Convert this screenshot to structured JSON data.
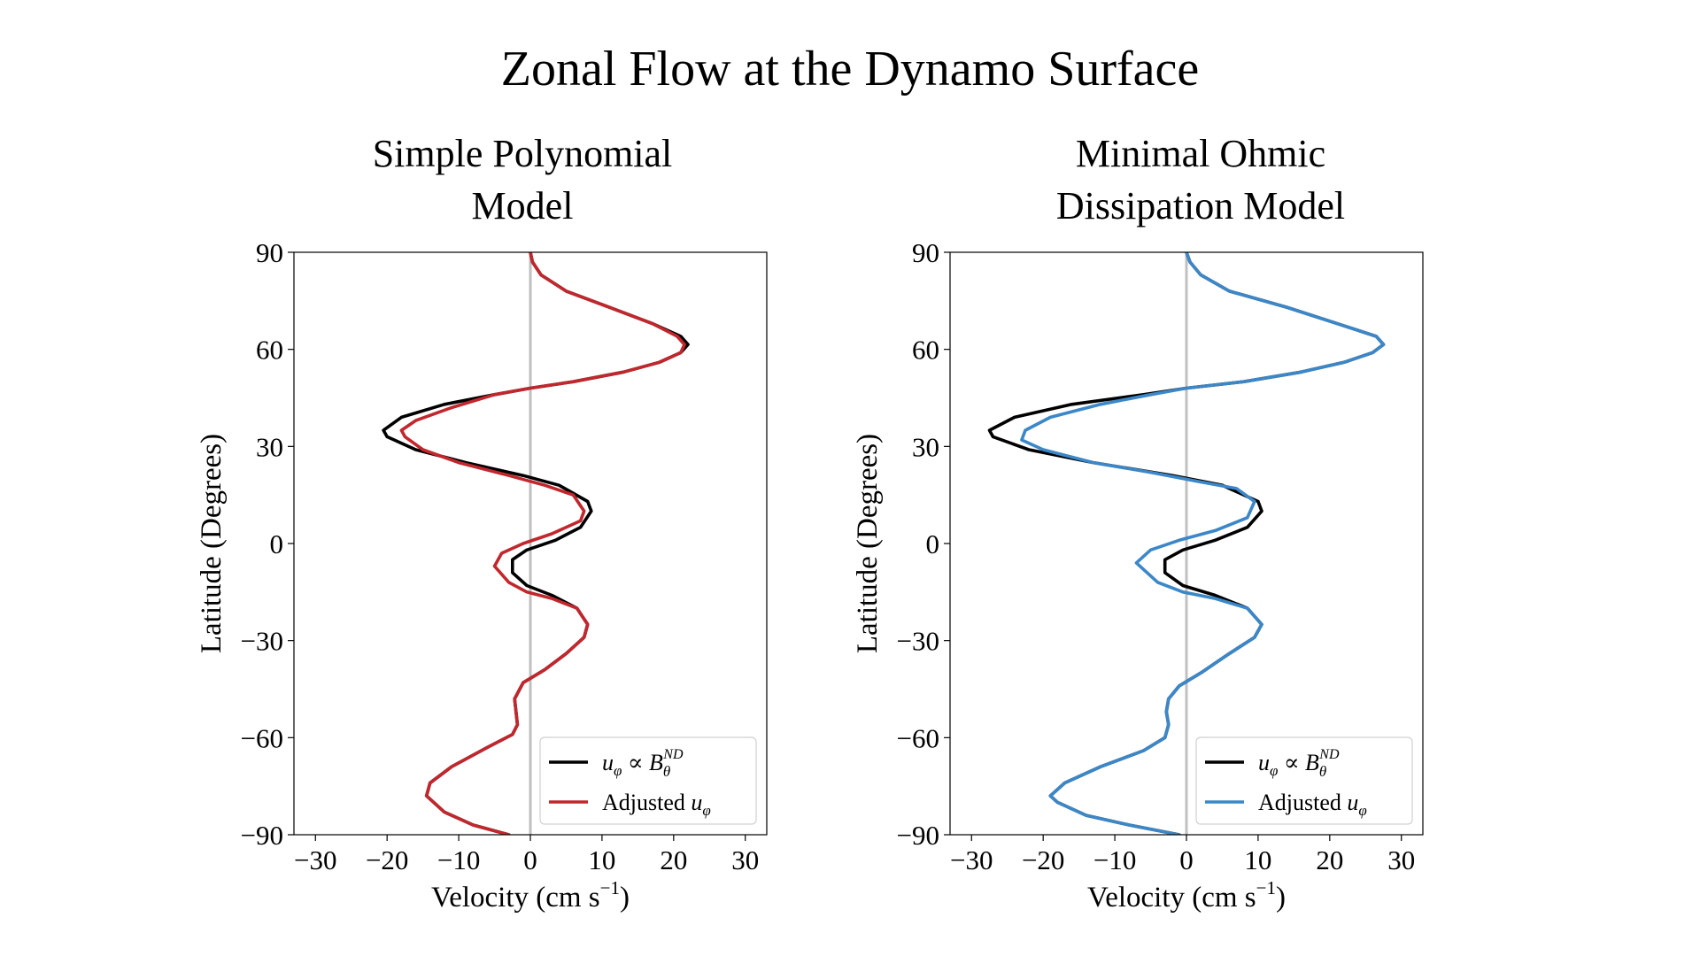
{
  "figure": {
    "title": "Zonal Flow at the Dynamo Surface"
  },
  "chart_data": [
    {
      "type": "line",
      "title_lines": [
        "Simple Polynomial",
        "Model"
      ],
      "xlabel": "Velocity (cm s",
      "xlabel_exp": "−1",
      "xlabel_close": ")",
      "ylabel": "Latitude (Degrees)",
      "xlim": [
        -33,
        33
      ],
      "ylim": [
        -90,
        90
      ],
      "xticks": [
        -30,
        -20,
        -10,
        0,
        10,
        20,
        30
      ],
      "xtick_labels": [
        "−30",
        "−20",
        "−10",
        "0",
        "10",
        "20",
        "30"
      ],
      "yticks": [
        -90,
        -60,
        -30,
        0,
        30,
        60,
        90
      ],
      "ytick_labels": [
        "−90",
        "−60",
        "−30",
        "0",
        "30",
        "60",
        "90"
      ],
      "zero_line_color": "#c0c0c0",
      "grid": false,
      "legend_position": "lower-right",
      "series": [
        {
          "name": "u_φ ∝ B_θ^ND",
          "legend": {
            "u": "u",
            "u_sub": "φ",
            "prop": " ∝ ",
            "b": "B",
            "b_sub": "θ",
            "b_sup": "ND"
          },
          "color": "#000000",
          "points": [
            [
              -3,
              -90
            ],
            [
              -8,
              -87
            ],
            [
              -12,
              -83
            ],
            [
              -14.5,
              -78
            ],
            [
              -14,
              -74
            ],
            [
              -11,
              -69
            ],
            [
              -6,
              -63
            ],
            [
              -2.5,
              -59
            ],
            [
              -1.8,
              -56
            ],
            [
              -2,
              -52
            ],
            [
              -2.2,
              -48
            ],
            [
              -1,
              -43
            ],
            [
              2,
              -39
            ],
            [
              5,
              -34
            ],
            [
              7.5,
              -29
            ],
            [
              8,
              -25
            ],
            [
              6.5,
              -20
            ],
            [
              3,
              -16
            ],
            [
              -0.5,
              -13
            ],
            [
              -2.5,
              -9
            ],
            [
              -2.5,
              -5
            ],
            [
              -0.5,
              -2
            ],
            [
              3.5,
              1
            ],
            [
              7,
              5
            ],
            [
              8.5,
              10
            ],
            [
              8,
              13
            ],
            [
              4,
              18
            ],
            [
              -1,
              21
            ],
            [
              -9,
              25
            ],
            [
              -16,
              29
            ],
            [
              -20,
              33
            ],
            [
              -20.5,
              35
            ],
            [
              -18,
              39
            ],
            [
              -12,
              43
            ],
            [
              -5,
              46
            ],
            [
              0,
              48
            ],
            [
              6,
              50
            ],
            [
              13,
              53
            ],
            [
              18,
              56
            ],
            [
              21,
              59
            ],
            [
              22,
              61.5
            ],
            [
              21,
              64
            ],
            [
              17,
              68
            ],
            [
              11,
              73
            ],
            [
              5,
              78
            ],
            [
              1.5,
              83
            ],
            [
              0.3,
              87
            ],
            [
              0,
              90
            ]
          ]
        },
        {
          "name": "Adjusted u_φ",
          "legend": {
            "text": "Adjusted ",
            "u": "u",
            "u_sub": "φ"
          },
          "color": "#c1272d",
          "points": [
            [
              -3,
              -90
            ],
            [
              -8,
              -87
            ],
            [
              -12,
              -83
            ],
            [
              -14.5,
              -78
            ],
            [
              -14,
              -74
            ],
            [
              -11,
              -69
            ],
            [
              -6,
              -63
            ],
            [
              -2.5,
              -59
            ],
            [
              -1.8,
              -56
            ],
            [
              -2,
              -52
            ],
            [
              -2.2,
              -48
            ],
            [
              -1,
              -43
            ],
            [
              2,
              -39
            ],
            [
              5,
              -34
            ],
            [
              7.5,
              -29
            ],
            [
              8,
              -25
            ],
            [
              6.5,
              -20
            ],
            [
              3,
              -17
            ],
            [
              -0.5,
              -15
            ],
            [
              -3,
              -12
            ],
            [
              -5,
              -7
            ],
            [
              -4,
              -3
            ],
            [
              -1,
              0
            ],
            [
              3,
              3
            ],
            [
              7,
              7
            ],
            [
              7.5,
              10
            ],
            [
              6,
              15
            ],
            [
              2,
              18
            ],
            [
              -3,
              21
            ],
            [
              -10,
              25
            ],
            [
              -15,
              29
            ],
            [
              -17.5,
              33
            ],
            [
              -18,
              35
            ],
            [
              -16,
              38
            ],
            [
              -11,
              42
            ],
            [
              -5,
              46
            ],
            [
              0,
              48
            ],
            [
              6,
              50
            ],
            [
              13,
              53
            ],
            [
              18,
              56
            ],
            [
              21,
              59
            ],
            [
              21.5,
              61.5
            ],
            [
              20.5,
              64
            ],
            [
              17,
              68
            ],
            [
              11,
              73
            ],
            [
              5,
              78
            ],
            [
              1.5,
              83
            ],
            [
              0.3,
              87
            ],
            [
              0,
              90
            ]
          ]
        }
      ]
    },
    {
      "type": "line",
      "title_lines": [
        "Minimal Ohmic",
        "Dissipation Model"
      ],
      "xlabel": "Velocity (cm s",
      "xlabel_exp": "−1",
      "xlabel_close": ")",
      "ylabel": "Latitude (Degrees)",
      "xlim": [
        -33,
        33
      ],
      "ylim": [
        -90,
        90
      ],
      "xticks": [
        -30,
        -20,
        -10,
        0,
        10,
        20,
        30
      ],
      "xtick_labels": [
        "−30",
        "−20",
        "−10",
        "0",
        "10",
        "20",
        "30"
      ],
      "yticks": [
        -90,
        -60,
        -30,
        0,
        30,
        60,
        90
      ],
      "ytick_labels": [
        "−90",
        "−60",
        "−30",
        "0",
        "30",
        "60",
        "90"
      ],
      "zero_line_color": "#c0c0c0",
      "grid": false,
      "legend_position": "lower-right",
      "series": [
        {
          "name": "u_φ ∝ B_θ^ND",
          "legend": {
            "u": "u",
            "u_sub": "φ",
            "prop": " ∝ ",
            "b": "B",
            "b_sub": "θ",
            "b_sup": "ND"
          },
          "color": "#000000",
          "points": [
            [
              -1,
              -90
            ],
            [
              -8,
              -87
            ],
            [
              -14,
              -84
            ],
            [
              -18,
              -80
            ],
            [
              -19,
              -78
            ],
            [
              -17,
              -74
            ],
            [
              -12,
              -69
            ],
            [
              -6,
              -64
            ],
            [
              -3,
              -60
            ],
            [
              -2.5,
              -56
            ],
            [
              -2.8,
              -52
            ],
            [
              -2.5,
              -48
            ],
            [
              -1,
              -44
            ],
            [
              2,
              -40
            ],
            [
              6,
              -34
            ],
            [
              9.5,
              -29
            ],
            [
              10.5,
              -25
            ],
            [
              8.5,
              -20
            ],
            [
              4,
              -16
            ],
            [
              -0.5,
              -13
            ],
            [
              -3,
              -9
            ],
            [
              -3,
              -5
            ],
            [
              -0.5,
              -2
            ],
            [
              4,
              1
            ],
            [
              8.5,
              5
            ],
            [
              10.5,
              10
            ],
            [
              10,
              13
            ],
            [
              5,
              18
            ],
            [
              -2,
              21
            ],
            [
              -13,
              25
            ],
            [
              -22,
              29
            ],
            [
              -27,
              33
            ],
            [
              -27.5,
              35
            ],
            [
              -24,
              39
            ],
            [
              -16,
              43
            ],
            [
              -6,
              46
            ],
            [
              0,
              48
            ],
            [
              8,
              50
            ],
            [
              16,
              53
            ],
            [
              22,
              56
            ],
            [
              26,
              59
            ],
            [
              27.5,
              61.5
            ],
            [
              26.5,
              64
            ],
            [
              21,
              68
            ],
            [
              14,
              73
            ],
            [
              6,
              78
            ],
            [
              2,
              83
            ],
            [
              0.5,
              87
            ],
            [
              0,
              90
            ]
          ]
        },
        {
          "name": "Adjusted u_φ",
          "legend": {
            "text": "Adjusted ",
            "u": "u",
            "u_sub": "φ"
          },
          "color": "#3b87c8",
          "points": [
            [
              -1,
              -90
            ],
            [
              -8,
              -87
            ],
            [
              -14,
              -84
            ],
            [
              -18,
              -80
            ],
            [
              -19,
              -78
            ],
            [
              -17,
              -74
            ],
            [
              -12,
              -69
            ],
            [
              -6,
              -64
            ],
            [
              -3,
              -60
            ],
            [
              -2.5,
              -56
            ],
            [
              -2.8,
              -52
            ],
            [
              -2.5,
              -48
            ],
            [
              -1,
              -44
            ],
            [
              2,
              -40
            ],
            [
              6,
              -34
            ],
            [
              9.5,
              -29
            ],
            [
              10.5,
              -25
            ],
            [
              8.5,
              -20
            ],
            [
              4,
              -17
            ],
            [
              -0.5,
              -15
            ],
            [
              -4,
              -12
            ],
            [
              -7,
              -6
            ],
            [
              -5,
              -2
            ],
            [
              -1,
              1
            ],
            [
              4,
              4
            ],
            [
              8.5,
              8
            ],
            [
              9.5,
              13
            ],
            [
              7,
              17
            ],
            [
              2,
              19
            ],
            [
              -5,
              22
            ],
            [
              -13,
              25
            ],
            [
              -20,
              29
            ],
            [
              -23,
              32
            ],
            [
              -22.5,
              35
            ],
            [
              -19,
              39
            ],
            [
              -12,
              43
            ],
            [
              -5,
              46
            ],
            [
              0,
              48
            ],
            [
              8,
              50
            ],
            [
              16,
              53
            ],
            [
              22,
              56
            ],
            [
              26,
              59
            ],
            [
              27.5,
              61.5
            ],
            [
              26.5,
              64
            ],
            [
              21,
              68
            ],
            [
              14,
              73
            ],
            [
              6,
              78
            ],
            [
              2,
              83
            ],
            [
              0.5,
              87
            ],
            [
              0,
              90
            ]
          ]
        }
      ]
    }
  ]
}
